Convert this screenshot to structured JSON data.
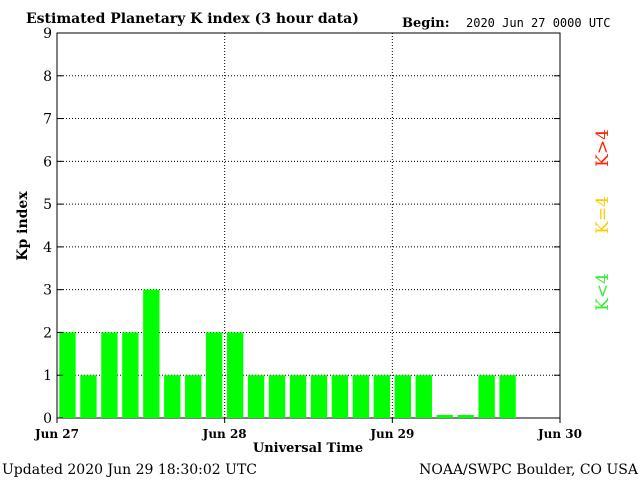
{
  "header": {
    "title": "Estimated Planetary K index (3 hour data)",
    "begin_label": "Begin:",
    "begin_value": "2020 Jun 27 0000 UTC"
  },
  "footer": {
    "updated": "Updated 2020 Jun 29 18:30:02 UTC",
    "source": "NOAA/SWPC Boulder, CO USA"
  },
  "legend": {
    "high": "K>4",
    "equal": "K=4",
    "low": "K<4"
  },
  "colors": {
    "bar": "#00ff00",
    "high": "#ff2200",
    "equal": "#ffcc00",
    "low": "#33ee33",
    "axis": "#000000"
  },
  "chart_data": {
    "type": "bar",
    "title": "Estimated Planetary K index (3 hour data)",
    "xlabel": "Universal Time",
    "ylabel": "Kp index",
    "ylim": [
      0,
      9
    ],
    "yticks": [
      "0",
      "1",
      "2",
      "3",
      "4",
      "5",
      "6",
      "7",
      "8",
      "9"
    ],
    "xticks": [
      "Jun 27",
      "Jun 28",
      "Jun 29",
      "Jun 30"
    ],
    "grid": true,
    "interval_hours": 3,
    "series": [
      {
        "values": [
          2,
          1,
          2,
          2,
          3,
          1,
          1,
          2,
          2,
          1,
          1,
          1,
          1,
          1,
          1,
          1,
          1,
          1,
          0.07,
          0.07,
          1,
          1
        ]
      }
    ]
  }
}
